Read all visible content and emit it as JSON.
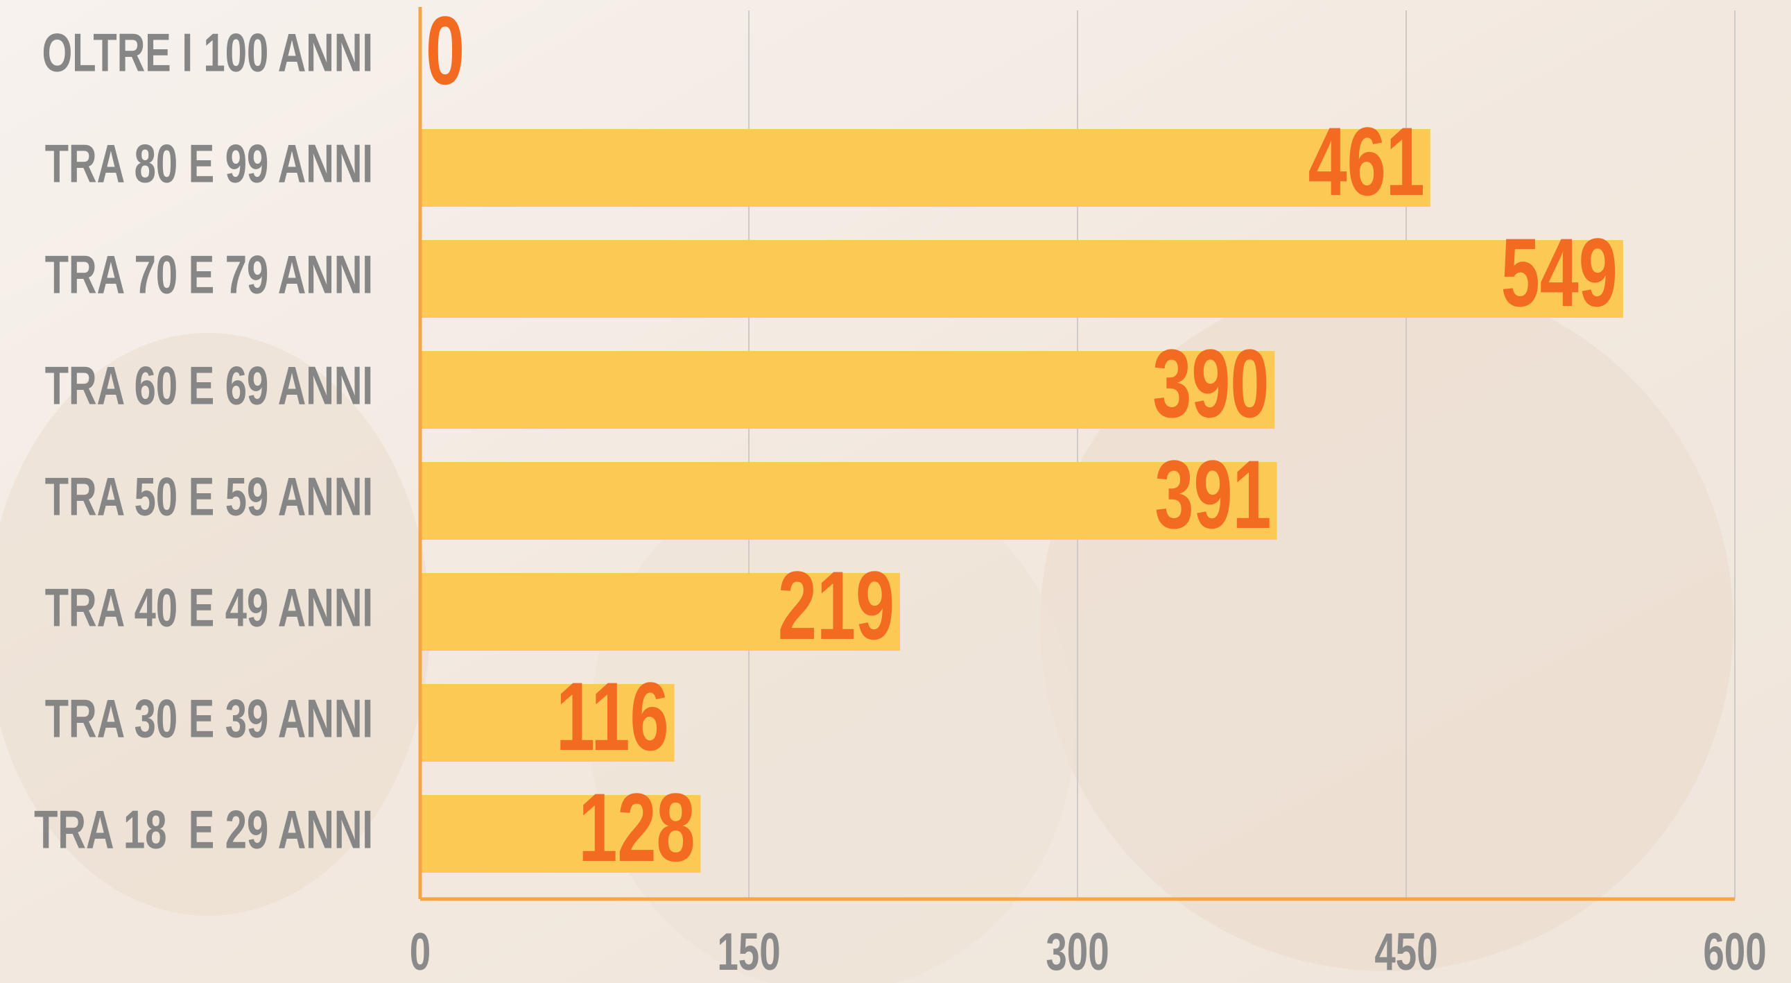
{
  "chart_data": {
    "type": "bar",
    "orientation": "horizontal",
    "categories": [
      "OLTRE I 100 ANNI",
      "TRA 80 E 99 ANNI",
      "TRA 70 E 79 ANNI",
      "TRA 60 E 69 ANNI",
      "TRA 50 E 59 ANNI",
      "TRA 40 E 49 ANNI",
      "TRA 30 E 39 ANNI",
      "TRA 18  E 29 ANNI"
    ],
    "values": [
      0,
      461,
      549,
      390,
      391,
      219,
      116,
      128
    ],
    "color": "#fdc955",
    "label_color": "#f26b21",
    "axis_color": "#f7a540",
    "xlim": [
      0,
      600
    ],
    "xticks": [
      0,
      150,
      300,
      450,
      600
    ],
    "grid": true
  }
}
